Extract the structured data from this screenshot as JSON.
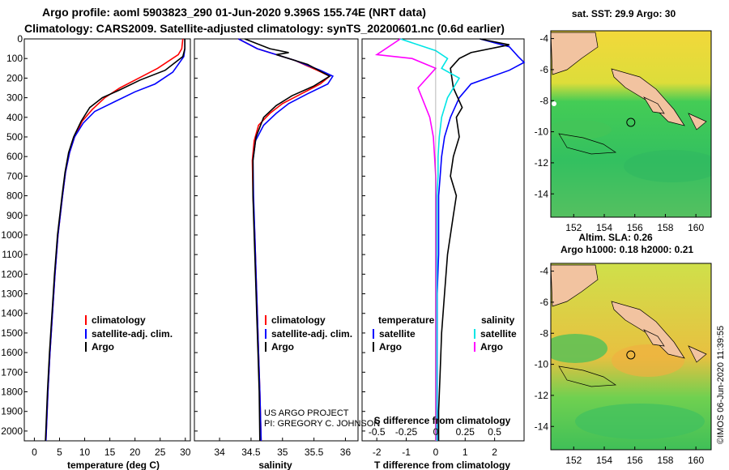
{
  "header": {
    "title_line1": "Argo profile: aoml 5903823_290 01-Jun-2020 9.396S 155.74E (NRT data)",
    "title_line2": "Climatology: CARS2009. Satellite-adjusted climatology: synTS_20200601.nc (0.6d earlier)"
  },
  "footer": {
    "project_line1": "US ARGO PROJECT",
    "project_line2": "PI: GREGORY C. JOHNSON",
    "credit": "©IMOS 06-Jun-2020 11:39:55"
  },
  "colors": {
    "argo": "#000000",
    "clim": "#ff0000",
    "sat": "#0000ff",
    "sat_s": "#00e5e5",
    "argo_s": "#ff00ff"
  },
  "chart_data": [
    {
      "type": "line",
      "id": "temperature",
      "xlabel": "temperature (deg C)",
      "xlim": [
        -2,
        31
      ],
      "ylim": [
        0,
        2050
      ],
      "x_ticks": [
        0,
        5,
        10,
        15,
        20,
        25,
        30
      ],
      "y_ticks": [
        0,
        100,
        200,
        300,
        400,
        500,
        600,
        700,
        800,
        900,
        1000,
        1100,
        1200,
        1300,
        1400,
        1500,
        1600,
        1700,
        1800,
        1900,
        2000
      ],
      "legend": [
        {
          "label": "climatology",
          "color": "#ff0000"
        },
        {
          "label": "satellite-adj. clim.",
          "color": "#0000ff"
        },
        {
          "label": "Argo",
          "color": "#000000"
        }
      ],
      "series": [
        {
          "name": "climatology",
          "color": "#ff0000",
          "x": [
            29.5,
            29.3,
            28.6,
            24.5,
            20,
            17,
            14,
            11.5,
            9.5,
            8,
            7,
            6.2,
            5.6,
            4.7,
            4.1,
            3.6,
            3.1,
            2.7,
            2.3
          ],
          "y": [
            0,
            50,
            80,
            150,
            210,
            250,
            300,
            360,
            420,
            500,
            580,
            680,
            800,
            1000,
            1200,
            1400,
            1600,
            1800,
            2050
          ]
        },
        {
          "name": "satellite-adj. clim.",
          "color": "#0000ff",
          "x": [
            29.9,
            29.9,
            29.7,
            27.5,
            24,
            20,
            16,
            12,
            9.7,
            8,
            7,
            6.2,
            5.6,
            4.7,
            4.1,
            3.6,
            3.1,
            2.7,
            2.3
          ],
          "y": [
            0,
            50,
            90,
            170,
            230,
            270,
            320,
            370,
            430,
            500,
            580,
            680,
            800,
            1000,
            1200,
            1400,
            1600,
            1800,
            2050
          ]
        },
        {
          "name": "Argo",
          "color": "#000000",
          "x": [
            29.9,
            29.9,
            29.5,
            26,
            21,
            17,
            13.5,
            11,
            9.3,
            7.8,
            6.8,
            6.1,
            5.5,
            4.6,
            4,
            3.5,
            3,
            2.6,
            2.2
          ],
          "y": [
            0,
            50,
            90,
            160,
            210,
            260,
            300,
            350,
            420,
            500,
            580,
            680,
            800,
            1000,
            1200,
            1400,
            1600,
            1800,
            2050
          ]
        }
      ]
    },
    {
      "type": "line",
      "id": "salinity",
      "xlabel": "salinity",
      "xlim": [
        33.6,
        36.2
      ],
      "ylim": [
        0,
        2050
      ],
      "x_ticks": [
        34,
        34.5,
        35,
        35.5,
        36
      ],
      "legend": [
        {
          "label": "climatology",
          "color": "#ff0000"
        },
        {
          "label": "satellite-adj. clim.",
          "color": "#0000ff"
        },
        {
          "label": "Argo",
          "color": "#000000"
        }
      ],
      "series": [
        {
          "name": "climatology",
          "color": "#ff0000",
          "x": [
            34.3,
            34.6,
            35.2,
            35.55,
            35.75,
            35.6,
            35.3,
            35,
            34.8,
            34.62,
            34.55,
            34.52,
            34.53,
            34.56,
            34.58,
            34.6,
            34.62,
            34.64,
            34.66
          ],
          "y": [
            0,
            50,
            110,
            160,
            190,
            230,
            280,
            330,
            380,
            440,
            520,
            620,
            800,
            1000,
            1200,
            1400,
            1600,
            1800,
            2050
          ]
        },
        {
          "name": "satellite-adj. clim.",
          "color": "#0000ff",
          "x": [
            34.3,
            34.6,
            35.2,
            35.6,
            35.8,
            35.72,
            35.4,
            35.1,
            34.9,
            34.7,
            34.57,
            34.53,
            34.54,
            34.56,
            34.58,
            34.6,
            34.62,
            34.64,
            34.66
          ],
          "y": [
            0,
            50,
            110,
            160,
            190,
            230,
            280,
            330,
            380,
            440,
            520,
            620,
            800,
            1000,
            1200,
            1400,
            1600,
            1800,
            2050
          ]
        },
        {
          "name": "Argo",
          "color": "#000000",
          "x": [
            34.4,
            34.8,
            35.1,
            34.9,
            35.4,
            35.75,
            35.5,
            35.15,
            34.9,
            34.7,
            34.58,
            34.53,
            34.53,
            34.55,
            34.57,
            34.59,
            34.61,
            34.63,
            34.64
          ],
          "y": [
            0,
            50,
            70,
            80,
            130,
            190,
            240,
            290,
            340,
            400,
            500,
            620,
            800,
            1000,
            1200,
            1400,
            1600,
            1800,
            2050
          ]
        }
      ]
    },
    {
      "type": "line",
      "id": "difference",
      "xlabel": "T difference from climatology",
      "xlabel_top": "S difference from climatology",
      "xlim": [
        -2.5,
        3
      ],
      "xlim_top": [
        -0.625,
        0.75
      ],
      "ylim": [
        0,
        2050
      ],
      "x_ticks": [
        -2,
        -1,
        0,
        1,
        2
      ],
      "x_ticks_top": [
        "-0.5",
        "-0.25",
        "0",
        "0.25",
        "0.5"
      ],
      "legend_t_title": "temperature",
      "legend_s_title": "salinity",
      "legend": [
        {
          "label": "satellite",
          "color": "#0000ff",
          "group": "temperature"
        },
        {
          "label": "Argo",
          "color": "#000000",
          "group": "temperature"
        },
        {
          "label": "satellite",
          "color": "#00e5e5",
          "group": "salinity"
        },
        {
          "label": "Argo",
          "color": "#ff00ff",
          "group": "salinity"
        }
      ],
      "series": [
        {
          "name": "T satellite",
          "color": "#0000ff",
          "x": [
            1.5,
            2.5,
            2.8,
            3,
            2.5,
            1.2,
            0.8,
            0.5,
            0.3,
            0.2,
            0.15,
            0.1,
            0.1,
            0.1,
            0.05,
            0.05,
            0.05,
            0.05,
            0.05
          ],
          "y": [
            0,
            40,
            90,
            120,
            160,
            230,
            300,
            400,
            500,
            600,
            700,
            800,
            900,
            1100,
            1300,
            1500,
            1700,
            1900,
            2050
          ]
        },
        {
          "name": "T Argo",
          "color": "#000000",
          "x": [
            1.5,
            2.5,
            1.2,
            0.8,
            0.5,
            0.6,
            0.9,
            0.7,
            0.8,
            0.6,
            0.5,
            0.7,
            0.6,
            0.4,
            0.3,
            0.2,
            0.15,
            0.1,
            0.1
          ],
          "y": [
            0,
            30,
            70,
            100,
            150,
            250,
            350,
            400,
            500,
            600,
            700,
            800,
            900,
            1100,
            1300,
            1500,
            1700,
            1900,
            2050
          ]
        },
        {
          "name": "S satellite",
          "color": "#00e5e5",
          "x": [
            -0.3,
            0,
            0.1,
            0.05,
            0.2,
            0.1,
            0.05,
            0.03,
            0.02,
            0.02,
            0.01,
            0.01,
            0.01,
            0.01,
            0.01,
            0.01,
            0.01,
            0.01,
            0.01
          ],
          "y": [
            0,
            60,
            100,
            150,
            200,
            300,
            400,
            500,
            600,
            700,
            800,
            900,
            1000,
            1200,
            1400,
            1600,
            1800,
            1900,
            2050
          ]
        },
        {
          "name": "S Argo",
          "color": "#ff00ff",
          "x": [
            -0.3,
            -0.5,
            -0.2,
            0,
            -0.15,
            -0.05,
            -0.02,
            -0.01,
            0,
            0,
            0,
            0,
            0,
            0,
            0,
            0,
            0,
            0,
            0
          ],
          "y": [
            0,
            80,
            100,
            150,
            250,
            400,
            500,
            600,
            700,
            800,
            900,
            1000,
            1200,
            1300,
            1400,
            1600,
            1800,
            1900,
            2050
          ]
        }
      ]
    },
    {
      "type": "heatmap",
      "id": "map_sst",
      "title": "sat. SST: 29.9 Argo: 30",
      "x_ticks": [
        152,
        154,
        156,
        158,
        160
      ],
      "y_ticks": [
        -4,
        -6,
        -8,
        -10,
        -12,
        -14
      ],
      "xlim": [
        150.5,
        161
      ],
      "ylim": [
        -15.5,
        -3.5
      ],
      "float_position": {
        "lon": 155.74,
        "lat": -9.396
      }
    },
    {
      "type": "heatmap",
      "id": "map_sla",
      "title_line1": "Altim. SLA: 0.26",
      "title_line2": "Argo h1000: 0.18 h2000: 0.21",
      "x_ticks": [
        152,
        154,
        156,
        158,
        160
      ],
      "y_ticks": [
        -4,
        -6,
        -8,
        -10,
        -12,
        -14
      ],
      "xlim": [
        150.5,
        161
      ],
      "ylim": [
        -15.5,
        -3.5
      ],
      "float_position": {
        "lon": 155.74,
        "lat": -9.396
      }
    }
  ]
}
